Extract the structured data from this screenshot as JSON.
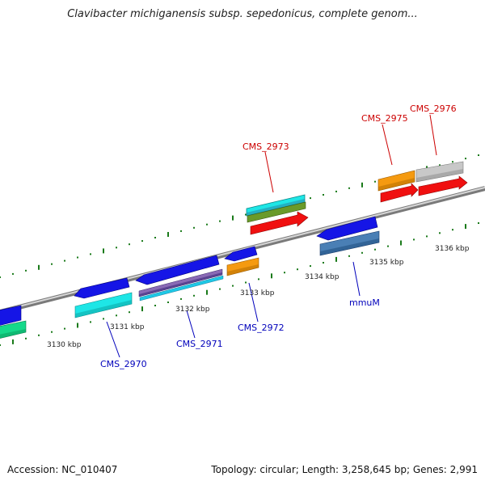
{
  "title": "Clavibacter michiganensis subsp. sepedonicus, complete genom...",
  "footer": {
    "accession": "Accession: NC_010407",
    "summary": "Topology: circular; Length: 3,258,645 bp; Genes: 2,991"
  },
  "ruler": {
    "kbp_labels": [
      "3130 kbp",
      "3131 kbp",
      "3132 kbp",
      "3133 kbp",
      "3134 kbp",
      "3135 kbp",
      "3136 kbp"
    ]
  },
  "colors": {
    "backbone": "#8a8a8a",
    "tick": "#1a7a1a",
    "label_forward": "#cc0000",
    "label_reverse": "#0000bb",
    "gene_blue": "#1515e6",
    "gene_cyan": "#1ee6e6",
    "gene_red": "#f01010",
    "gene_orange": "#f59a10",
    "gene_gray": "#c8c8c8",
    "gene_steel": "#4a7fb5",
    "gene_green": "#15d98a",
    "gene_olive": "#6a9a2a",
    "gene_purple": "#8a6ab5"
  },
  "gene_labels": [
    {
      "name": "CMS_2973",
      "strand": "forward"
    },
    {
      "name": "CMS_2975",
      "strand": "forward"
    },
    {
      "name": "CMS_2976",
      "strand": "forward"
    },
    {
      "name": "CMS_2970",
      "strand": "reverse"
    },
    {
      "name": "CMS_2971",
      "strand": "reverse"
    },
    {
      "name": "CMS_2972",
      "strand": "reverse"
    },
    {
      "name": "mmuM",
      "strand": "reverse"
    }
  ]
}
